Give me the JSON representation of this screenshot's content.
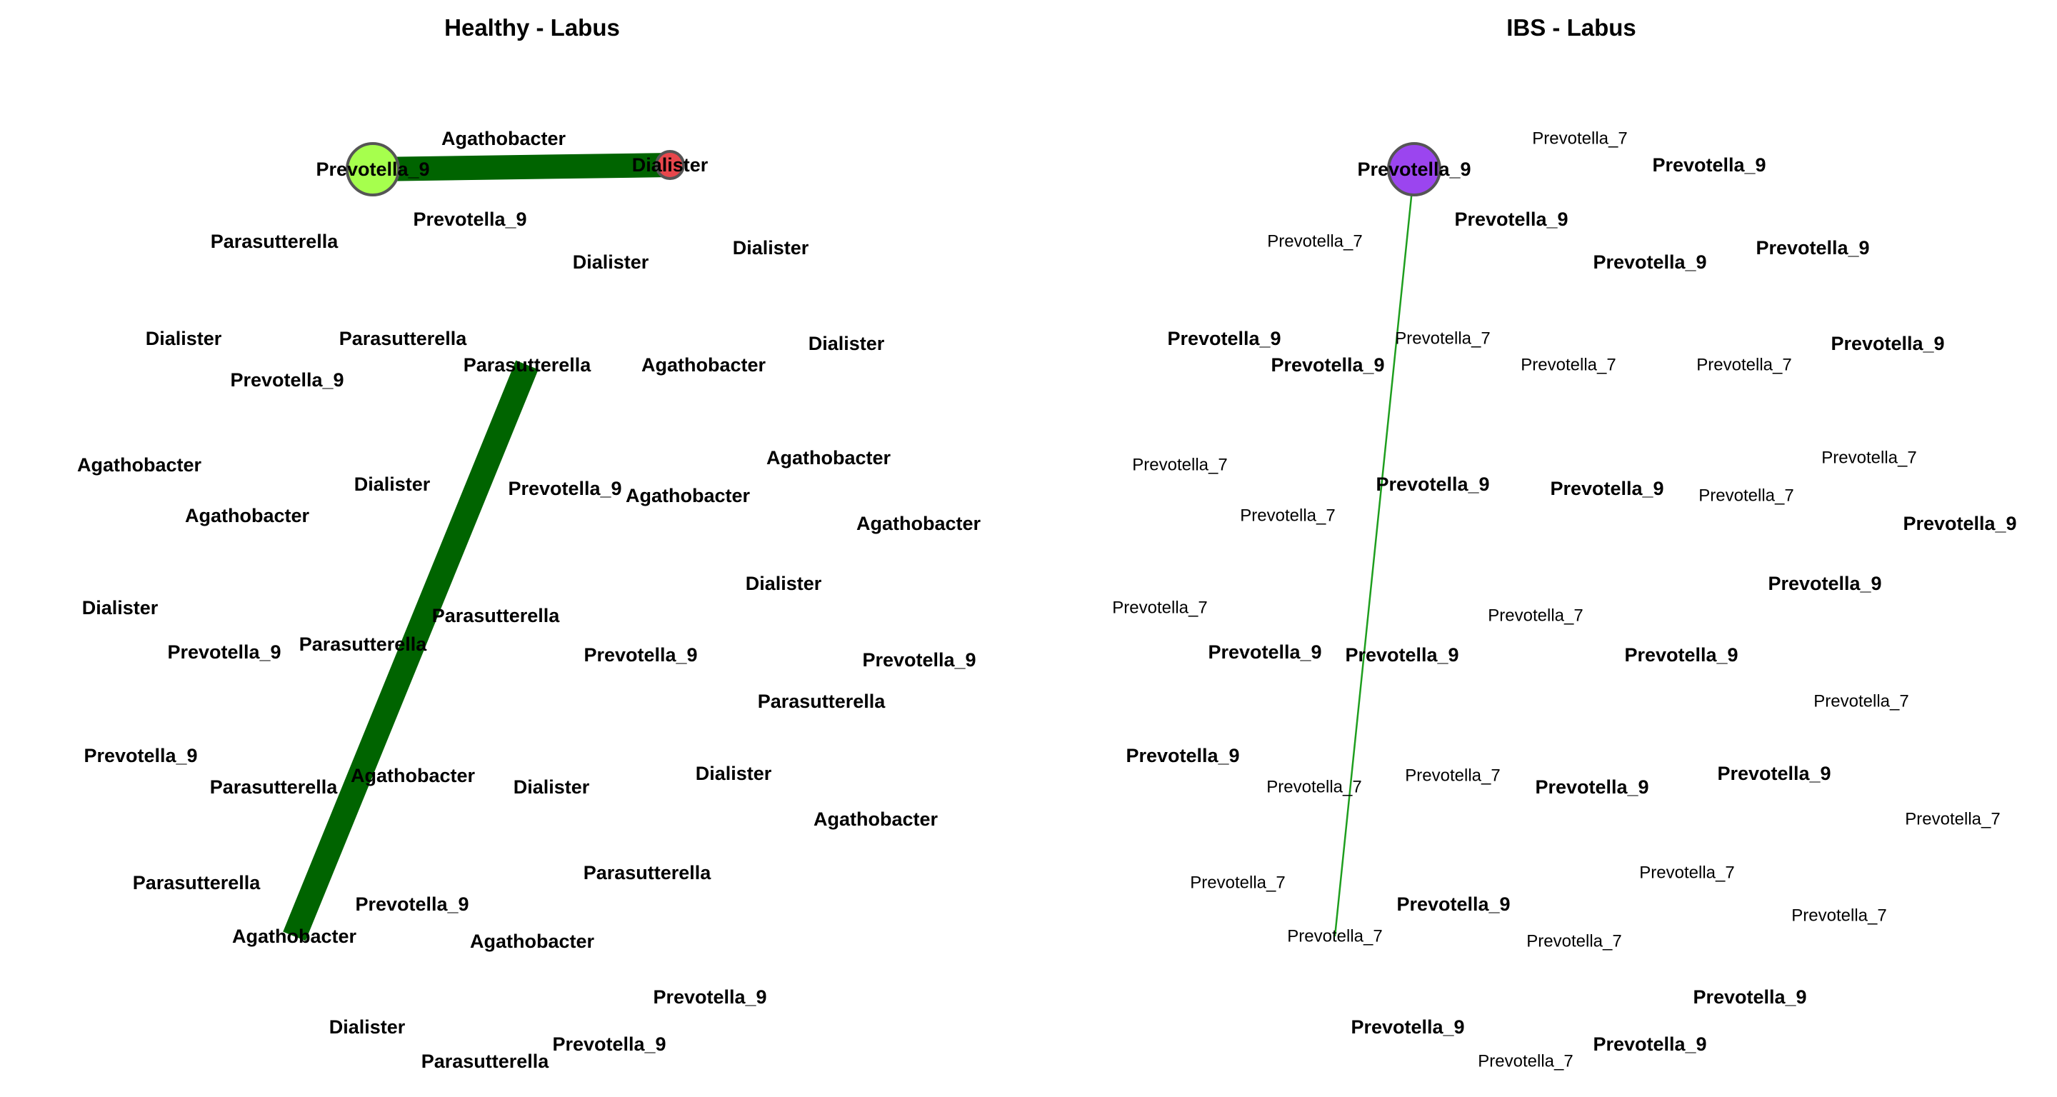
{
  "panels": [
    {
      "id": "healthy",
      "title": "Healthy - Labus",
      "nodes": [
        {
          "label": "Prevotella_9",
          "weight": "bold",
          "circle": "lime"
        },
        {
          "label": "Dialister",
          "weight": "bold",
          "circle": "red"
        },
        {
          "label": "Agathobacter",
          "weight": "bold"
        },
        {
          "label": "Prevotella_9",
          "weight": "bold"
        },
        {
          "label": "Parasutterella",
          "weight": "bold"
        },
        {
          "label": "Dialister",
          "weight": "bold"
        },
        {
          "label": "Dialister",
          "weight": "bold"
        },
        {
          "label": "Dialister",
          "weight": "bold"
        },
        {
          "label": "Parasutterella",
          "weight": "bold"
        },
        {
          "label": "Parasutterella",
          "weight": "bold"
        },
        {
          "label": "Agathobacter",
          "weight": "bold"
        },
        {
          "label": "Dialister",
          "weight": "bold"
        },
        {
          "label": "Prevotella_9",
          "weight": "bold"
        },
        {
          "label": "Agathobacter",
          "weight": "bold"
        },
        {
          "label": "Agathobacter",
          "weight": "bold"
        },
        {
          "label": "Dialister",
          "weight": "bold"
        },
        {
          "label": "Prevotella_9",
          "weight": "bold"
        },
        {
          "label": "Agathobacter",
          "weight": "bold"
        },
        {
          "label": "Agathobacter",
          "weight": "bold"
        },
        {
          "label": "Agathobacter",
          "weight": "bold"
        },
        {
          "label": "Dialister",
          "weight": "bold"
        },
        {
          "label": "Dialister",
          "weight": "bold"
        },
        {
          "label": "Parasutterella",
          "weight": "bold"
        },
        {
          "label": "Prevotella_9",
          "weight": "bold"
        },
        {
          "label": "Parasutterella",
          "weight": "bold"
        },
        {
          "label": "Prevotella_9",
          "weight": "bold"
        },
        {
          "label": "Prevotella_9",
          "weight": "bold"
        },
        {
          "label": "Parasutterella",
          "weight": "bold"
        },
        {
          "label": "Prevotella_9",
          "weight": "bold"
        },
        {
          "label": "Agathobacter",
          "weight": "bold"
        },
        {
          "label": "Dialister",
          "weight": "bold"
        },
        {
          "label": "Dialister",
          "weight": "bold"
        },
        {
          "label": "Parasutterella",
          "weight": "bold"
        },
        {
          "label": "Agathobacter",
          "weight": "bold"
        },
        {
          "label": "Parasutterella",
          "weight": "bold"
        },
        {
          "label": "Parasutterella",
          "weight": "bold"
        },
        {
          "label": "Prevotella_9",
          "weight": "bold"
        },
        {
          "label": "Agathobacter",
          "weight": "bold"
        },
        {
          "label": "Agathobacter",
          "weight": "bold"
        },
        {
          "label": "Prevotella_9",
          "weight": "bold"
        },
        {
          "label": "Dialister",
          "weight": "bold"
        },
        {
          "label": "Prevotella_9",
          "weight": "bold"
        },
        {
          "label": "Parasutterella",
          "weight": "bold"
        }
      ],
      "edges": [
        {
          "from": 0,
          "to": 1,
          "color": "#006400",
          "width": "heavy"
        },
        {
          "from": 9,
          "to": 37,
          "color": "#006400",
          "width": "heavy"
        }
      ],
      "colors": {
        "lime": "#a6ff4d",
        "red": "#e8474c"
      }
    },
    {
      "id": "ibs",
      "title": "IBS - Labus",
      "nodes": [
        {
          "label": "Prevotella_9",
          "weight": "bold",
          "circle": "purple"
        },
        {
          "label": "Prevotella_7",
          "weight": "normal"
        },
        {
          "label": "Prevotella_9",
          "weight": "bold"
        },
        {
          "label": "Prevotella_9",
          "weight": "bold"
        },
        {
          "label": "Prevotella_7",
          "weight": "normal"
        },
        {
          "label": "Prevotella_9",
          "weight": "bold"
        },
        {
          "label": "Prevotella_9",
          "weight": "bold"
        },
        {
          "label": "Prevotella_9",
          "weight": "bold"
        },
        {
          "label": "Prevotella_7",
          "weight": "normal"
        },
        {
          "label": "Prevotella_9",
          "weight": "bold"
        },
        {
          "label": "Prevotella_7",
          "weight": "normal"
        },
        {
          "label": "Prevotella_7",
          "weight": "normal"
        },
        {
          "label": "Prevotella_9",
          "weight": "bold"
        },
        {
          "label": "Prevotella_7",
          "weight": "normal"
        },
        {
          "label": "Prevotella_7",
          "weight": "normal"
        },
        {
          "label": "Prevotella_9",
          "weight": "bold"
        },
        {
          "label": "Prevotella_9",
          "weight": "bold"
        },
        {
          "label": "Prevotella_7",
          "weight": "normal"
        },
        {
          "label": "Prevotella_7",
          "weight": "normal"
        },
        {
          "label": "Prevotella_9",
          "weight": "bold"
        },
        {
          "label": "Prevotella_9",
          "weight": "bold"
        },
        {
          "label": "Prevotella_7",
          "weight": "normal"
        },
        {
          "label": "Prevotella_9",
          "weight": "bold"
        },
        {
          "label": "Prevotella_7",
          "weight": "normal"
        },
        {
          "label": "Prevotella_9",
          "weight": "bold"
        },
        {
          "label": "Prevotella_9",
          "weight": "bold"
        },
        {
          "label": "Prevotella_7",
          "weight": "normal"
        },
        {
          "label": "Prevotella_9",
          "weight": "bold"
        },
        {
          "label": "Prevotella_7",
          "weight": "normal"
        },
        {
          "label": "Prevotella_7",
          "weight": "normal"
        },
        {
          "label": "Prevotella_9",
          "weight": "bold"
        },
        {
          "label": "Prevotella_9",
          "weight": "bold"
        },
        {
          "label": "Prevotella_7",
          "weight": "normal"
        },
        {
          "label": "Prevotella_7",
          "weight": "normal"
        },
        {
          "label": "Prevotella_7",
          "weight": "normal"
        },
        {
          "label": "Prevotella_9",
          "weight": "bold"
        },
        {
          "label": "Prevotella_7",
          "weight": "normal"
        },
        {
          "label": "Prevotella_7",
          "weight": "normal"
        },
        {
          "label": "Prevotella_7",
          "weight": "normal"
        },
        {
          "label": "Prevotella_9",
          "weight": "bold"
        },
        {
          "label": "Prevotella_9",
          "weight": "bold"
        },
        {
          "label": "Prevotella_9",
          "weight": "bold"
        },
        {
          "label": "Prevotella_7",
          "weight": "normal"
        }
      ],
      "edges": [
        {
          "from": 0,
          "to": 36,
          "color": "#1e9e1e",
          "width": "thin"
        }
      ],
      "colors": {
        "purple": "#9b45ef"
      }
    }
  ]
}
